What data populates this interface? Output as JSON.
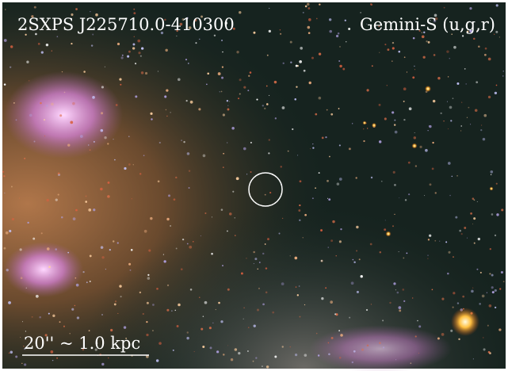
{
  "header": {
    "source": "2SXPS J225710.0-410300",
    "instrument": "Gemini-S (u,g,r)"
  },
  "scale_bar": {
    "label": "20'' ~ 1.0 kpc"
  }
}
